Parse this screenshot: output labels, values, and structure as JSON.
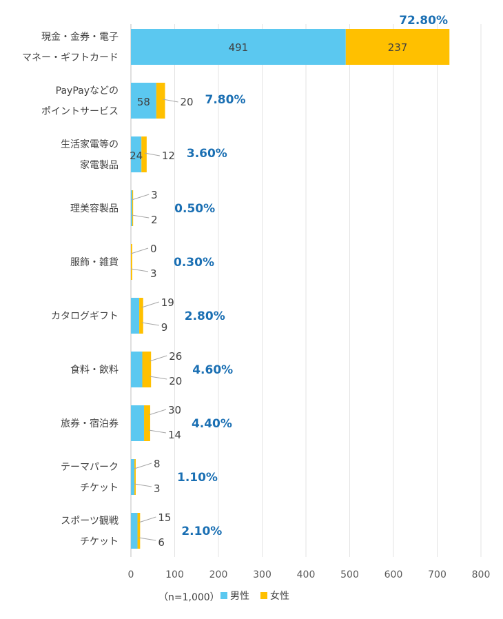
{
  "chart_data": {
    "type": "bar",
    "orientation": "horizontal",
    "stacked": true,
    "categories": [
      [
        "現金・金券・電子",
        "マネー・ギフトカード"
      ],
      [
        "PayPayなどの",
        "ポイントサービス"
      ],
      [
        "生活家電等の",
        "家電製品"
      ],
      [
        "理美容製品"
      ],
      [
        "服飾・雑貨"
      ],
      [
        "カタログギフト"
      ],
      [
        "食料・飲料"
      ],
      [
        "旅券・宿泊券"
      ],
      [
        "テーマパーク",
        "チケット"
      ],
      [
        "スポーツ観戦",
        "チケット"
      ]
    ],
    "series": [
      {
        "name": "男性",
        "color": "#5bc8f0",
        "values": [
          491,
          58,
          24,
          3,
          0,
          19,
          26,
          30,
          8,
          15
        ]
      },
      {
        "name": "女性",
        "color": "#ffc000",
        "values": [
          237,
          20,
          12,
          2,
          3,
          9,
          20,
          14,
          3,
          6
        ]
      }
    ],
    "percent_labels": [
      "72.80%",
      "7.80%",
      "3.60%",
      "0.50%",
      "0.30%",
      "2.80%",
      "4.60%",
      "4.40%",
      "1.10%",
      "2.10%"
    ],
    "xlim": [
      0,
      800
    ],
    "x_ticks": [
      "0",
      "100",
      "200",
      "300",
      "400",
      "500",
      "600",
      "700",
      "800"
    ],
    "grid": true,
    "legend_position": "bottom",
    "note": "（n=1,000）"
  }
}
